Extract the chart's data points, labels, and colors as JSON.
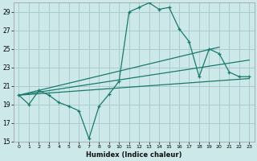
{
  "xlabel": "Humidex (Indice chaleur)",
  "bg_color": "#cce8e8",
  "grid_color": "#aacccc",
  "line_color": "#1a7a6e",
  "xlim": [
    -0.5,
    23.5
  ],
  "ylim": [
    15,
    30
  ],
  "xticks": [
    0,
    1,
    2,
    3,
    4,
    5,
    6,
    7,
    8,
    9,
    10,
    11,
    12,
    13,
    14,
    15,
    16,
    17,
    18,
    19,
    20,
    21,
    22,
    23
  ],
  "yticks": [
    15,
    17,
    19,
    21,
    23,
    25,
    27,
    29
  ],
  "curve1_x": [
    0,
    1,
    2,
    3,
    4,
    5,
    6,
    7,
    8,
    9,
    10,
    11,
    12,
    13,
    14,
    15,
    16,
    17,
    18,
    19,
    20,
    21,
    22,
    23
  ],
  "curve1_y": [
    20,
    19,
    20.5,
    20,
    19.2,
    18.8,
    18.3,
    15.3,
    18.8,
    20.1,
    21.5,
    29,
    29.5,
    30,
    29.3,
    29.5,
    27.2,
    25.8,
    22,
    25,
    24.5,
    22.5,
    22,
    22
  ],
  "line1_x": [
    0,
    23
  ],
  "line1_y": [
    20.0,
    21.8
  ],
  "line2_x": [
    0,
    23
  ],
  "line2_y": [
    20.0,
    23.8
  ],
  "line3_x": [
    0,
    20
  ],
  "line3_y": [
    20.0,
    25.2
  ]
}
